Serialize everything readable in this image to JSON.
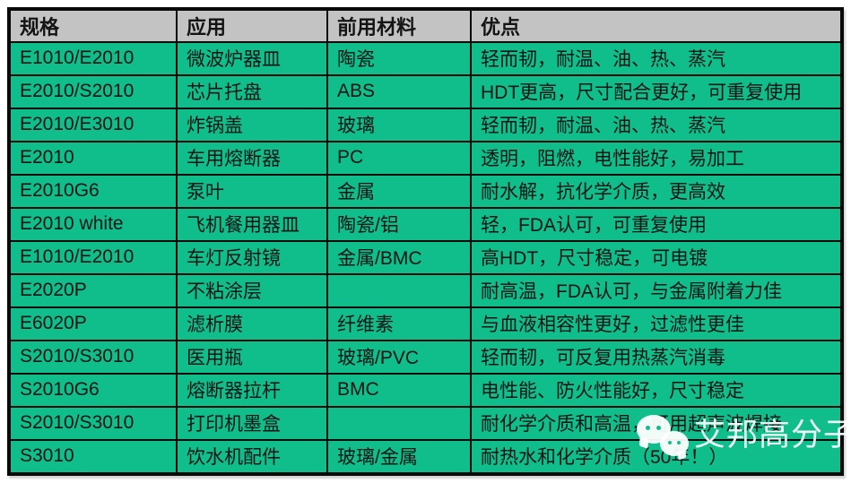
{
  "table": {
    "columns": [
      "规格",
      "应用",
      "前用材料",
      "优点"
    ],
    "rows": [
      [
        "E1010/E2010",
        "微波炉器皿",
        "陶瓷",
        "轻而韧，耐温、油、热、蒸汽"
      ],
      [
        "E2010/S2010",
        "芯片托盘",
        "ABS",
        "HDT更高，尺寸配合更好，可重复使用"
      ],
      [
        "E2010/E3010",
        "炸锅盖",
        "玻璃",
        "轻而韧，耐温、油、热、蒸汽"
      ],
      [
        "E2010",
        "车用熔断器",
        "PC",
        "透明，阻燃，电性能好，易加工"
      ],
      [
        "E2010G6",
        "泵叶",
        "金属",
        "耐水解，抗化学介质，更高效"
      ],
      [
        "E2010 white",
        "飞机餐用器皿",
        "陶瓷/铝",
        "轻，FDA认可，可重复使用"
      ],
      [
        "E1010/E2010",
        "车灯反射镜",
        "金属/BMC",
        "高HDT，尺寸稳定，可电镀"
      ],
      [
        "E2020P",
        "不粘涂层",
        "",
        "耐高温，FDA认可，与金属附着力佳"
      ],
      [
        "E6020P",
        "滤析膜",
        "纤维素",
        "与血液相容性更好，过滤性更佳"
      ],
      [
        "S2010/S3010",
        "医用瓶",
        "玻璃/PVC",
        "轻而韧，可反复用热蒸汽消毒"
      ],
      [
        "S2010G6",
        "熔断器拉杆",
        "BMC",
        "电性能、防火性能好，尺寸稳定"
      ],
      [
        "S2010/S3010",
        "打印机墨盒",
        "",
        "耐化学介质和高温，可用超声波焊接"
      ],
      [
        "S3010",
        "饮水机配件",
        "玻璃/金属",
        "耐热水和化学介质（50年！）"
      ]
    ],
    "cell_names": [
      "cell-spec",
      "cell-application",
      "cell-previous-material",
      "cell-advantage"
    ]
  },
  "watermark": {
    "text": "艾邦高分子",
    "icon": "wechat-icon"
  },
  "colors": {
    "row_green": "#10BE8C",
    "header_gray": "#C3C3C3",
    "border_black": "#0a0a0a",
    "text_black": "#141414",
    "watermark_white": "#ffffff"
  }
}
